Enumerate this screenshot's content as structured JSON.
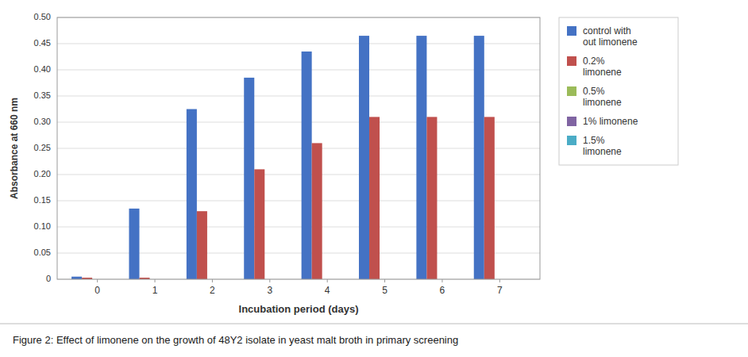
{
  "chart_data": {
    "type": "bar",
    "caption": "Figure 2: Effect of limonene on the growth of 48Y2 isolate in yeast malt broth in primary screening",
    "x_label": "Incubation period (days)",
    "y_label": "Absorbance at 660 nm",
    "x": [
      0,
      1,
      2,
      3,
      4,
      5,
      6,
      7
    ],
    "xlim": [
      -0.7,
      7.7
    ],
    "xticks": [
      0,
      1,
      2,
      3,
      4,
      5,
      6,
      7
    ],
    "ylim": [
      0,
      0.5
    ],
    "yticks": [
      0,
      0.05,
      {
        "value": 0.1,
        "label": "0.10"
      },
      0.15,
      {
        "value": 0.2,
        "label": "0.20"
      },
      0.25,
      {
        "value": 0.3,
        "label": "0.30"
      },
      0.35,
      {
        "value": 0.4,
        "label": "0.40"
      },
      0.45,
      {
        "value": 0.5,
        "label": "0.50"
      }
    ],
    "grid": true,
    "legend": "right",
    "series": [
      {
        "name": "control with\nout limonene",
        "color": "#4472C4",
        "values": [
          0.005,
          0.135,
          0.325,
          0.385,
          0.435,
          0.465,
          0.465,
          0.465
        ]
      },
      {
        "name": "0.2%\nlimonene",
        "color": "#C0504D",
        "values": [
          0.003,
          0.003,
          0.13,
          0.21,
          0.26,
          0.31,
          0.31,
          0.31
        ]
      },
      {
        "name": "0.5%\nlimonene",
        "color": "#9BBB59",
        "values": [
          0.0,
          0.0,
          0.0,
          0.0,
          0.0,
          0.0,
          0.0,
          0.0
        ]
      },
      {
        "name": "1% limonene",
        "color": "#8064A2",
        "values": [
          0.0,
          0.0,
          0.0,
          0.0,
          0.0,
          0.0,
          0.0,
          0.0
        ]
      },
      {
        "name": "1.5%\nlimonene",
        "color": "#4BACC6",
        "values": [
          0.0,
          0.0,
          0.0,
          0.0,
          0.0,
          0.0,
          0.0,
          0.0
        ]
      }
    ]
  }
}
